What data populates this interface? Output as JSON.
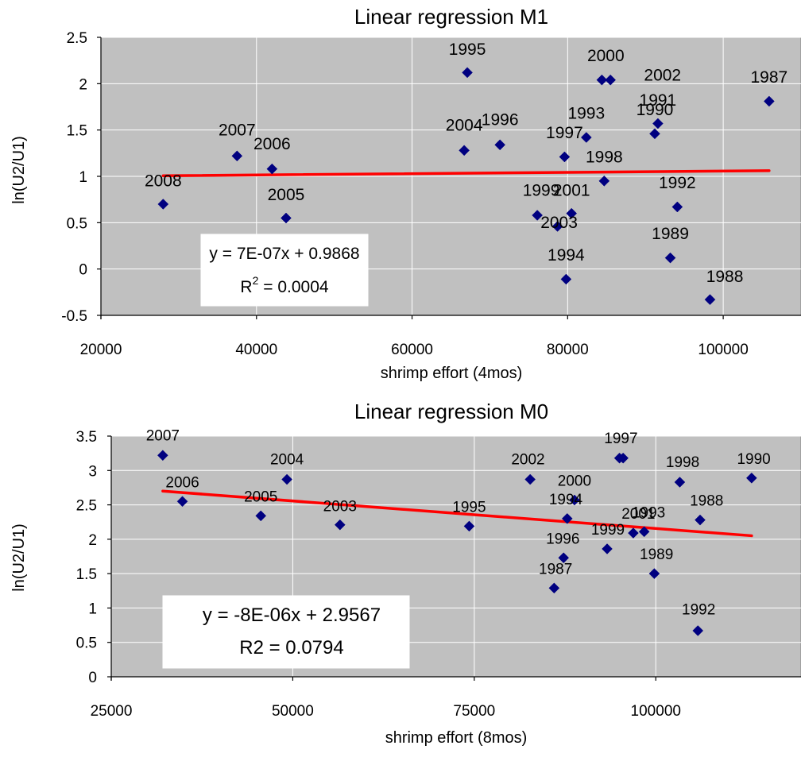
{
  "chart_data": [
    {
      "type": "scatter",
      "title": "Linear regression M1",
      "xlabel": "shrimp effort (4mos)",
      "ylabel": "ln(U2/U1)",
      "xlim": [
        20000,
        110000
      ],
      "ylim": [
        -0.5,
        2.5
      ],
      "xticks": [
        20000,
        40000,
        60000,
        80000,
        100000
      ],
      "xtick_labels": [
        "20000",
        "40000",
        "60000",
        "80000",
        "100000"
      ],
      "yticks": [
        -0.5,
        0,
        0.5,
        1,
        1.5,
        2,
        2.5
      ],
      "ytick_labels": [
        "-0.5",
        "0",
        "0.5",
        "1",
        "1.5",
        "2",
        "2.5"
      ],
      "grid": true,
      "marker_color": "#000080",
      "trend_color": "#FF0000",
      "plot_bg": "#C0C0C0",
      "points": [
        {
          "label": "2008",
          "x": 28000,
          "y": 0.7
        },
        {
          "label": "2007",
          "x": 37500,
          "y": 1.22
        },
        {
          "label": "2006",
          "x": 42000,
          "y": 1.08
        },
        {
          "label": "2005",
          "x": 43800,
          "y": 0.55
        },
        {
          "label": "2004",
          "x": 66700,
          "y": 1.28
        },
        {
          "label": "1995",
          "x": 67100,
          "y": 2.12
        },
        {
          "label": "1996",
          "x": 71300,
          "y": 1.34
        },
        {
          "label": "1999",
          "x": 76100,
          "y": 0.58
        },
        {
          "label": "2003",
          "x": 78700,
          "y": 0.46
        },
        {
          "label": "1997",
          "x": 79600,
          "y": 1.21
        },
        {
          "label": "1994",
          "x": 79800,
          "y": -0.11
        },
        {
          "label": "2001",
          "x": 80500,
          "y": 0.6
        },
        {
          "label": "1993",
          "x": 82400,
          "y": 1.42
        },
        {
          "label": "2000",
          "x": 84400,
          "y": 2.04
        },
        {
          "label": "1998",
          "x": 84700,
          "y": 0.95
        },
        {
          "label": "2000",
          "x": 85500,
          "y": 2.04
        },
        {
          "label": "1990",
          "x": 91200,
          "y": 1.46
        },
        {
          "label": "1991",
          "x": 91600,
          "y": 1.57
        },
        {
          "label": "1989",
          "x": 93200,
          "y": 0.12
        },
        {
          "label": "1992",
          "x": 94100,
          "y": 0.67
        },
        {
          "label": "1988",
          "x": 98300,
          "y": -0.33
        },
        {
          "label": "1987",
          "x": 105900,
          "y": 1.81
        }
      ],
      "labels": [
        {
          "text": "2008",
          "x": 28000,
          "y": 0.96
        },
        {
          "text": "2007",
          "x": 37500,
          "y": 1.51
        },
        {
          "text": "2006",
          "x": 42000,
          "y": 1.36
        },
        {
          "text": "2005",
          "x": 43800,
          "y": 0.81
        },
        {
          "text": "2004",
          "x": 66700,
          "y": 1.56
        },
        {
          "text": "1995",
          "x": 67100,
          "y": 2.38
        },
        {
          "text": "1996",
          "x": 71300,
          "y": 1.62
        },
        {
          "text": "1999",
          "x": 76600,
          "y": 0.86
        },
        {
          "text": "2003",
          "x": 78900,
          "y": 0.51
        },
        {
          "text": "1997",
          "x": 79600,
          "y": 1.48
        },
        {
          "text": "1994",
          "x": 79800,
          "y": 0.16
        },
        {
          "text": "2001",
          "x": 80500,
          "y": 0.86
        },
        {
          "text": "1993",
          "x": 82400,
          "y": 1.69
        },
        {
          "text": "2000",
          "x": 84900,
          "y": 2.31
        },
        {
          "text": "1998",
          "x": 84700,
          "y": 1.22
        },
        {
          "text": "1990",
          "x": 91200,
          "y": 1.73
        },
        {
          "text": "1991",
          "x": 91600,
          "y": 1.83
        },
        {
          "text": "2002",
          "x": 92200,
          "y": 2.1
        },
        {
          "text": "1989",
          "x": 93200,
          "y": 0.39
        },
        {
          "text": "1992",
          "x": 94100,
          "y": 0.94
        },
        {
          "text": "1988",
          "x": 100200,
          "y": -0.07
        },
        {
          "text": "1987",
          "x": 105900,
          "y": 2.08
        }
      ],
      "trendline": {
        "slope": 7e-07,
        "intercept": 0.9868,
        "x_start": 28000,
        "x_end": 105900
      },
      "equation": "y = 7E-07x + 0.9868",
      "r2_prefix": "R",
      "r2_exp": "2",
      "r2_value": " = 0.0004"
    },
    {
      "type": "scatter",
      "title": "Linear regression M0",
      "xlabel": "shrimp effort (8mos)",
      "ylabel": "ln(U2/U1)",
      "xlim": [
        25000,
        120000
      ],
      "ylim": [
        0,
        3.5
      ],
      "xticks": [
        25000,
        50000,
        75000,
        100000
      ],
      "xtick_labels": [
        "25000",
        "50000",
        "75000",
        "100000"
      ],
      "yticks": [
        0,
        0.5,
        1,
        1.5,
        2,
        2.5,
        3,
        3.5
      ],
      "ytick_labels": [
        "0",
        "0.5",
        "1",
        "1.5",
        "2",
        "2.5",
        "3",
        "3.5"
      ],
      "grid": true,
      "marker_color": "#000080",
      "trend_color": "#FF0000",
      "plot_bg": "#C0C0C0",
      "points": [
        {
          "label": "2007",
          "x": 32100,
          "y": 3.22
        },
        {
          "label": "2006",
          "x": 34800,
          "y": 2.55
        },
        {
          "label": "2005",
          "x": 45600,
          "y": 2.34
        },
        {
          "label": "2004",
          "x": 49200,
          "y": 2.87
        },
        {
          "label": "2003",
          "x": 56500,
          "y": 2.21
        },
        {
          "label": "1995",
          "x": 74300,
          "y": 2.19
        },
        {
          "label": "2002",
          "x": 82700,
          "y": 2.87
        },
        {
          "label": "1987",
          "x": 86000,
          "y": 1.29
        },
        {
          "label": "1996",
          "x": 87300,
          "y": 1.73
        },
        {
          "label": "1994",
          "x": 87800,
          "y": 2.3
        },
        {
          "label": "2000",
          "x": 88800,
          "y": 2.57
        },
        {
          "label": "1999",
          "x": 93300,
          "y": 1.86
        },
        {
          "label": "1997",
          "x": 95000,
          "y": 3.18
        },
        {
          "label": "1997",
          "x": 95500,
          "y": 3.18
        },
        {
          "label": "2001",
          "x": 96900,
          "y": 2.09
        },
        {
          "label": "1993",
          "x": 98400,
          "y": 2.11
        },
        {
          "label": "1989",
          "x": 99800,
          "y": 1.5
        },
        {
          "label": "1998",
          "x": 103300,
          "y": 2.83
        },
        {
          "label": "1988",
          "x": 106100,
          "y": 2.28
        },
        {
          "label": "1992",
          "x": 105800,
          "y": 0.67
        },
        {
          "label": "1990",
          "x": 113200,
          "y": 2.89
        }
      ],
      "labels": [
        {
          "text": "2007",
          "x": 32100,
          "y": 3.53
        },
        {
          "text": "2006",
          "x": 34800,
          "y": 2.85
        },
        {
          "text": "2004",
          "x": 49200,
          "y": 3.18
        },
        {
          "text": "2005",
          "x": 45600,
          "y": 2.64
        },
        {
          "text": "2003",
          "x": 56500,
          "y": 2.5
        },
        {
          "text": "1995",
          "x": 74300,
          "y": 2.49
        },
        {
          "text": "2002",
          "x": 82400,
          "y": 3.18
        },
        {
          "text": "2000",
          "x": 88800,
          "y": 2.87
        },
        {
          "text": "1994",
          "x": 87600,
          "y": 2.6
        },
        {
          "text": "1997",
          "x": 95200,
          "y": 3.49
        },
        {
          "text": "2001",
          "x": 97600,
          "y": 2.39
        },
        {
          "text": "1993",
          "x": 99000,
          "y": 2.41
        },
        {
          "text": "1999",
          "x": 93400,
          "y": 2.16
        },
        {
          "text": "1996",
          "x": 87200,
          "y": 2.03
        },
        {
          "text": "1987",
          "x": 86200,
          "y": 1.59
        },
        {
          "text": "1989",
          "x": 100100,
          "y": 1.8
        },
        {
          "text": "1998",
          "x": 103700,
          "y": 3.14
        },
        {
          "text": "1988",
          "x": 107000,
          "y": 2.58
        },
        {
          "text": "1992",
          "x": 105900,
          "y": 1.0
        },
        {
          "text": "1990",
          "x": 113500,
          "y": 3.19
        }
      ],
      "trendline": {
        "slope": -8e-06,
        "intercept": 2.9567,
        "x_start": 32100,
        "x_end": 113200
      },
      "equation": "y = -8E-06x + 2.9567",
      "r2_prefix": "R2",
      "r2_exp": "",
      "r2_value": " = 0.0794"
    }
  ]
}
